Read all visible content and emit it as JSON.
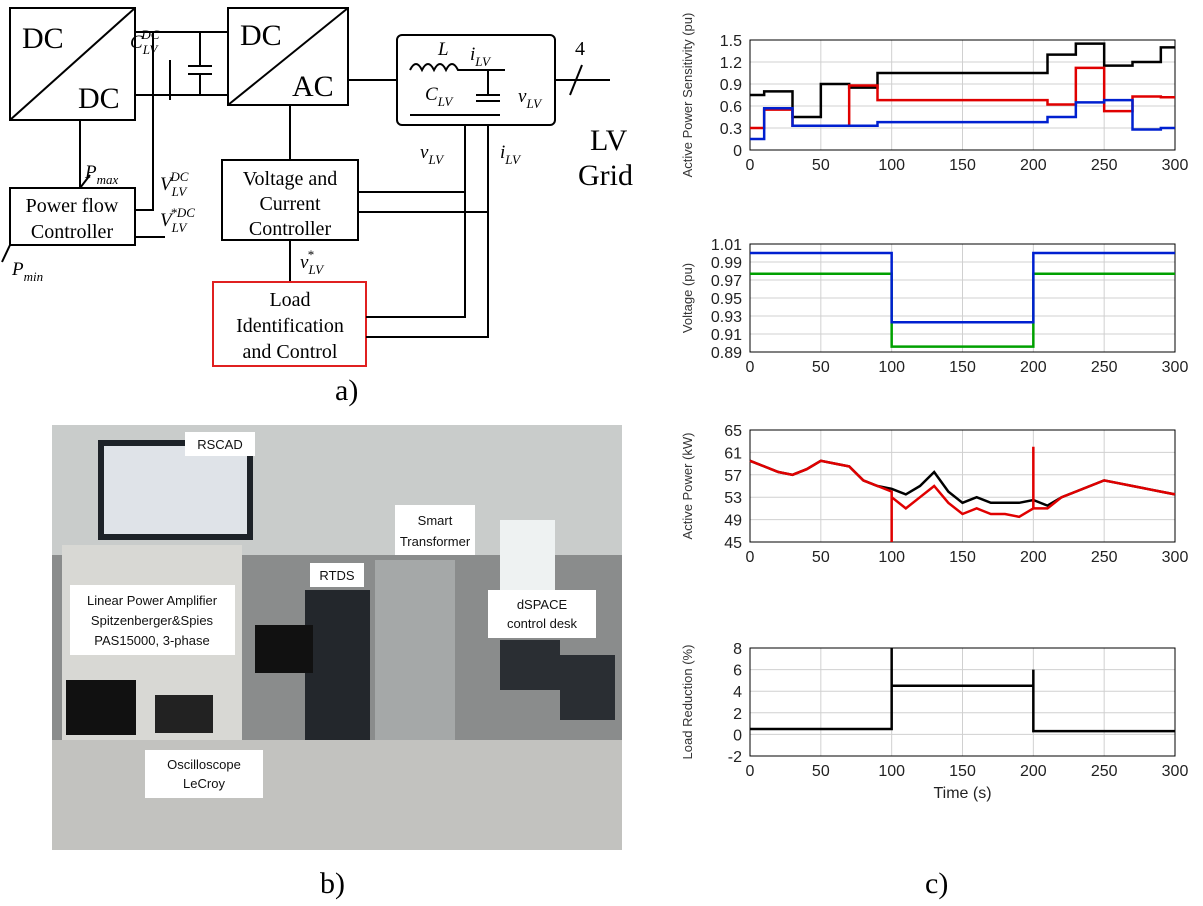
{
  "diagram": {
    "dcdc": [
      "DC",
      "DC"
    ],
    "dcac": [
      "DC",
      "AC"
    ],
    "c_dc": {
      "base": "C",
      "sub": "LV",
      "sup": "DC"
    },
    "inductor": "L",
    "i_lv": {
      "base": "i",
      "sub": "LV"
    },
    "v_lv": {
      "base": "v",
      "sub": "LV"
    },
    "c_lv": {
      "base": "C",
      "sub": "LV"
    },
    "phases": "4",
    "grid": [
      "LV",
      "Grid"
    ],
    "p_max": {
      "base": "P",
      "sub": "max"
    },
    "v_dc": {
      "base": "V",
      "sub": "LV",
      "sup": "DC"
    },
    "v_dc_ref": {
      "base": "V",
      "sub": "LV",
      "sup": "*DC"
    },
    "pfc": [
      "Power flow",
      "Controller"
    ],
    "p_min": {
      "base": "P",
      "sub": "min"
    },
    "vcc": [
      "Voltage and",
      "Current",
      "Controller"
    ],
    "v_ref": {
      "base": "v",
      "sub": "LV",
      "sup": "*"
    },
    "lic": [
      "Load",
      "Identification",
      "and Control"
    ],
    "v_out": {
      "base": "v",
      "sub": "LV"
    },
    "i_out": {
      "base": "i",
      "sub": "LV"
    },
    "label": "a)"
  },
  "photo": {
    "rscad": "RSCAD",
    "st": [
      "Smart",
      "Transformer"
    ],
    "rtds": "RTDS",
    "amp": [
      "Linear Power Amplifier",
      "Spitzenberger&Spies",
      "PAS15000, 3-phase"
    ],
    "dspace": [
      "dSPACE",
      "control desk"
    ],
    "scope": [
      "Oscilloscope",
      "LeCroy"
    ],
    "label": "b)"
  },
  "panel_label": "c)",
  "chart_data": [
    {
      "type": "line",
      "y_label": "Active Power Sensitivity (pu)",
      "xlim": [
        0,
        300
      ],
      "xticks": [
        0,
        50,
        100,
        150,
        200,
        250,
        300
      ],
      "ylim": [
        0,
        1.5
      ],
      "yticks": [
        0,
        0.3,
        0.6,
        0.9,
        1.2,
        1.5
      ],
      "grid": true,
      "series": [
        {
          "color": "#000000",
          "x": [
            0,
            10,
            10,
            30,
            30,
            50,
            50,
            70,
            70,
            90,
            90,
            210,
            210,
            230,
            230,
            250,
            250,
            270,
            270,
            290,
            290,
            300
          ],
          "values": [
            0.75,
            0.75,
            0.8,
            0.8,
            0.45,
            0.45,
            0.9,
            0.9,
            0.85,
            0.85,
            1.05,
            1.05,
            1.3,
            1.3,
            1.45,
            1.45,
            1.15,
            1.15,
            1.2,
            1.2,
            1.4,
            1.4
          ]
        },
        {
          "color": "#e00000",
          "x": [
            0,
            10,
            10,
            30,
            30,
            70,
            70,
            90,
            90,
            210,
            210,
            230,
            230,
            250,
            250,
            270,
            270,
            290,
            290,
            300
          ],
          "values": [
            0.3,
            0.3,
            0.55,
            0.55,
            0.33,
            0.33,
            0.88,
            0.88,
            0.68,
            0.68,
            0.62,
            0.62,
            1.12,
            1.12,
            0.53,
            0.53,
            0.73,
            0.73,
            0.72,
            0.72
          ]
        },
        {
          "color": "#0020d0",
          "x": [
            0,
            10,
            10,
            30,
            30,
            90,
            90,
            210,
            210,
            230,
            230,
            250,
            250,
            270,
            270,
            290,
            290,
            300
          ],
          "values": [
            0.15,
            0.15,
            0.57,
            0.57,
            0.33,
            0.33,
            0.38,
            0.38,
            0.45,
            0.45,
            0.65,
            0.65,
            0.68,
            0.68,
            0.28,
            0.28,
            0.3,
            0.3
          ]
        }
      ]
    },
    {
      "type": "line",
      "y_label": "Voltage (pu)",
      "xlim": [
        0,
        300
      ],
      "xticks": [
        0,
        50,
        100,
        150,
        200,
        250,
        300
      ],
      "ylim": [
        0.89,
        1.01
      ],
      "yticks": [
        0.89,
        0.91,
        0.93,
        0.95,
        0.97,
        0.99,
        1.01
      ],
      "grid": true,
      "series": [
        {
          "color": "#00a000",
          "x": [
            0,
            100,
            100,
            200,
            200,
            300
          ],
          "values": [
            0.977,
            0.977,
            0.896,
            0.896,
            0.977,
            0.977
          ]
        },
        {
          "color": "#0020d0",
          "x": [
            0,
            100,
            100,
            200,
            200,
            300
          ],
          "values": [
            1.0,
            1.0,
            0.923,
            0.923,
            1.0,
            1.0
          ]
        }
      ]
    },
    {
      "type": "line",
      "y_label": "Active Power (kW)",
      "xlim": [
        0,
        300
      ],
      "xticks": [
        0,
        50,
        100,
        150,
        200,
        250,
        300
      ],
      "ylim": [
        45,
        65
      ],
      "yticks": [
        45,
        49,
        53,
        57,
        61,
        65
      ],
      "grid": true,
      "series": [
        {
          "color": "#000000",
          "x": [
            0,
            10,
            20,
            30,
            40,
            50,
            60,
            70,
            80,
            90,
            100,
            110,
            120,
            130,
            140,
            150,
            160,
            170,
            180,
            190,
            200,
            210,
            220,
            230,
            240,
            250,
            260,
            270,
            280,
            290,
            300
          ],
          "values": [
            59.5,
            58.5,
            57.5,
            57,
            58,
            59.5,
            59,
            58.5,
            56,
            55,
            54.5,
            53.5,
            55,
            57.5,
            54,
            52,
            53,
            52,
            52,
            52,
            52.5,
            51.5,
            53,
            54,
            55,
            56,
            55.5,
            55,
            54.5,
            54,
            53.5
          ]
        },
        {
          "color": "#e00000",
          "x": [
            0,
            10,
            20,
            30,
            40,
            50,
            60,
            70,
            80,
            90,
            100,
            100,
            100,
            110,
            120,
            130,
            140,
            150,
            160,
            170,
            180,
            190,
            200,
            200,
            200,
            210,
            220,
            230,
            240,
            250,
            260,
            270,
            280,
            290,
            300
          ],
          "values": [
            59.5,
            58.5,
            57.5,
            57,
            58,
            59.5,
            59,
            58.5,
            56,
            55,
            54,
            45,
            53,
            51,
            53,
            55,
            52,
            50,
            51,
            50,
            50,
            49.5,
            51,
            62,
            51,
            51,
            53,
            54,
            55,
            56,
            55.5,
            55,
            54.5,
            54,
            53.5
          ]
        }
      ]
    },
    {
      "type": "line",
      "y_label": "Load Reduction (%)",
      "x_label": "Time (s)",
      "xlim": [
        0,
        300
      ],
      "xticks": [
        0,
        50,
        100,
        150,
        200,
        250,
        300
      ],
      "ylim": [
        -2,
        8
      ],
      "yticks": [
        -2,
        0,
        2,
        4,
        6,
        8
      ],
      "grid": true,
      "series": [
        {
          "color": "#000000",
          "x": [
            0,
            100,
            100,
            100,
            200,
            200,
            200,
            300
          ],
          "values": [
            0.5,
            0.5,
            8,
            4.5,
            4.5,
            6,
            0.3,
            0.3
          ]
        }
      ]
    }
  ]
}
